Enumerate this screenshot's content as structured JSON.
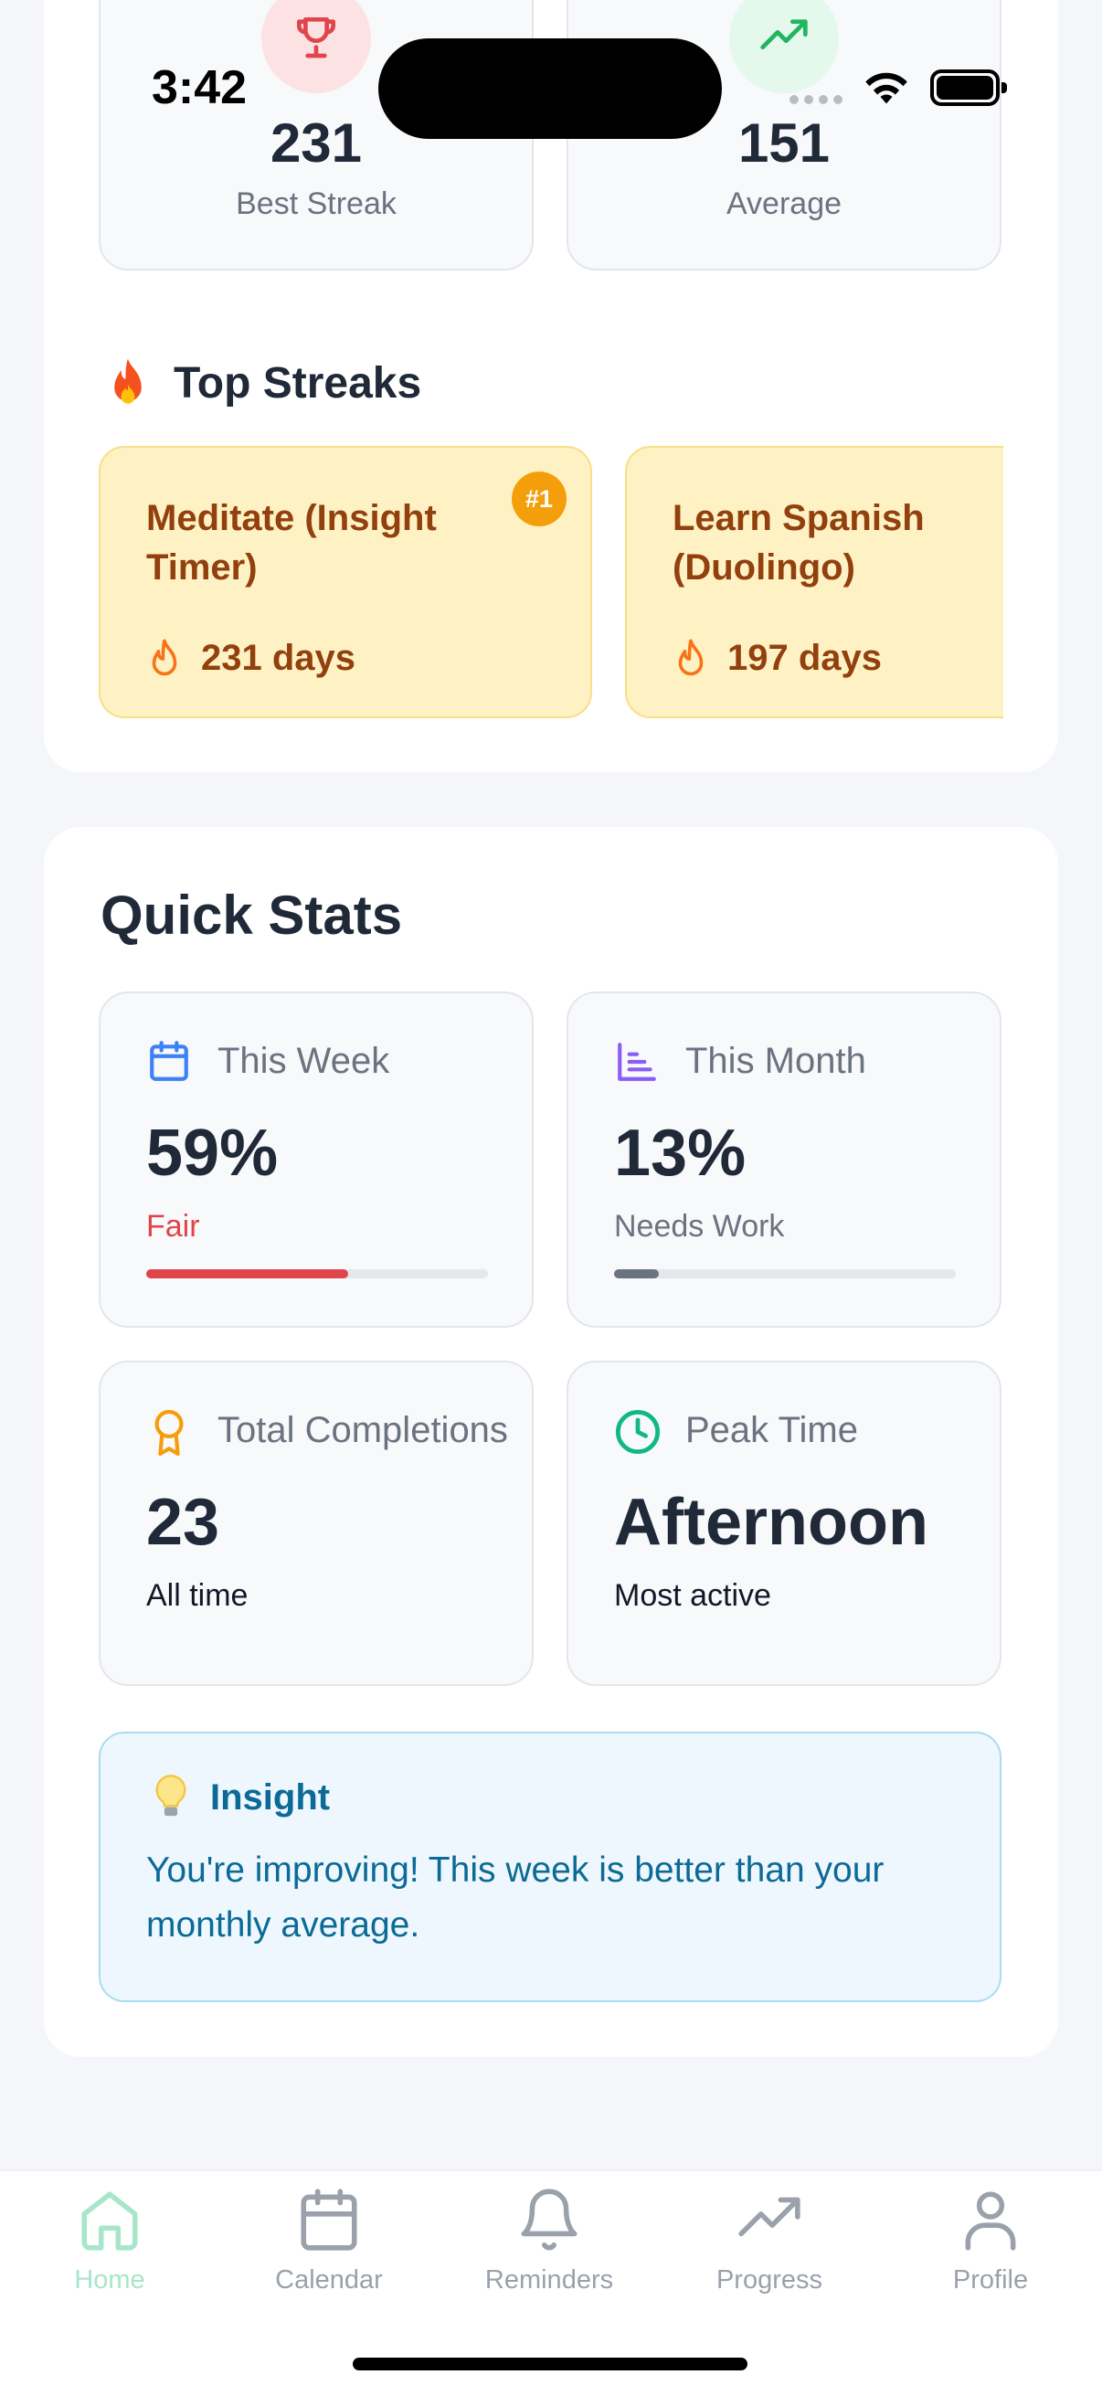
{
  "status_bar": {
    "time": "3:42"
  },
  "summary": {
    "best_streak": {
      "value": "231",
      "label": "Best Streak",
      "icon": "trophy-icon",
      "icon_color": "#e0454b"
    },
    "average": {
      "value": "151",
      "label": "Average",
      "icon": "trending-up-icon",
      "icon_color": "#22b45e"
    }
  },
  "top_streaks": {
    "title": "Top Streaks",
    "icon": "fire-emoji",
    "items": [
      {
        "name": "Meditate (Insight Timer)",
        "days": "231 days",
        "rank": "#1"
      },
      {
        "name": "Learn Spanish (Duolingo)",
        "days": "197 days"
      }
    ]
  },
  "quick_stats": {
    "title": "Quick Stats",
    "this_week": {
      "label": "This Week",
      "value": "59%",
      "status": "Fair",
      "progress": 0.59,
      "status_color": "#e0454b",
      "icon": "calendar-icon"
    },
    "this_month": {
      "label": "This Month",
      "value": "13%",
      "status": "Needs Work",
      "progress": 0.13,
      "status_color": "#6b7280",
      "icon": "bar-chart-icon"
    },
    "total_completions": {
      "label": "Total Completions",
      "value": "23",
      "sub": "All time",
      "icon": "award-icon"
    },
    "peak_time": {
      "label": "Peak Time",
      "value": "Afternoon",
      "sub": "Most active",
      "icon": "clock-icon"
    },
    "insight": {
      "title": "Insight",
      "text": "You're improving! This week is better than your monthly average.",
      "icon": "lightbulb-emoji"
    }
  },
  "nav": {
    "items": [
      {
        "label": "Home",
        "icon": "home-icon",
        "active": true
      },
      {
        "label": "Calendar",
        "icon": "calendar-icon"
      },
      {
        "label": "Reminders",
        "icon": "bell-icon"
      },
      {
        "label": "Progress",
        "icon": "trending-up-icon"
      },
      {
        "label": "Profile",
        "icon": "user-icon"
      }
    ],
    "active_color": "#a8e6cc"
  }
}
